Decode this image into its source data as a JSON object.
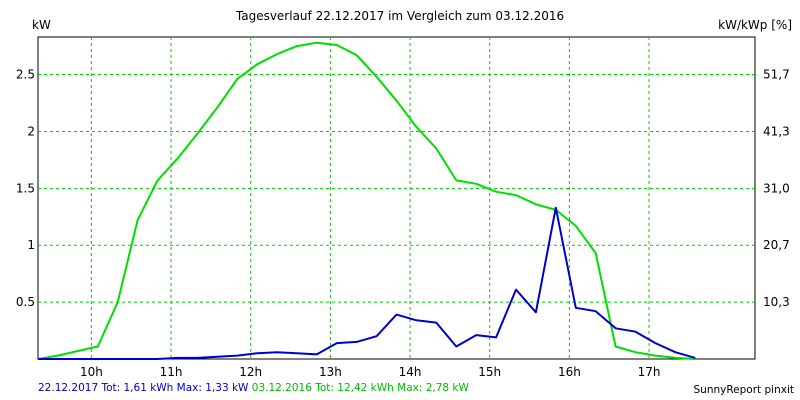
{
  "chart_data": {
    "type": "line",
    "title": "Tagesverlauf 22.12.2017 im Vergleich zum 03.12.2016",
    "ylabel_left": "kW",
    "ylabel_right": "kW/kWp [%]",
    "ylim": [
      0,
      2.83
    ],
    "y_ticks_left": [
      0.5,
      1,
      1.5,
      2,
      2.5
    ],
    "y_ticks_right": [
      "10,3",
      "20,7",
      "31,0",
      "41,3",
      "51,7"
    ],
    "x_ticks": [
      "10h",
      "11h",
      "12h",
      "13h",
      "14h",
      "15h",
      "16h",
      "17h"
    ],
    "x_tick_hours": [
      10,
      11,
      12,
      13,
      14,
      15,
      16,
      17
    ],
    "xlim": [
      9.33,
      18.33
    ],
    "grid": true,
    "series": [
      {
        "name": "22.12.2017",
        "color": "#0000cc",
        "x": [
          9.33,
          9.58,
          9.83,
          10.08,
          10.33,
          10.58,
          10.83,
          11.08,
          11.33,
          11.58,
          11.83,
          12.08,
          12.33,
          12.58,
          12.83,
          13.08,
          13.33,
          13.58,
          13.83,
          14.08,
          14.33,
          14.58,
          14.83,
          15.08,
          15.33,
          15.58,
          15.83,
          16.08,
          16.33,
          16.58,
          16.83,
          17.08,
          17.33,
          17.58
        ],
        "values": [
          0,
          0,
          0,
          0,
          0,
          0,
          0,
          0.01,
          0.01,
          0.02,
          0.03,
          0.05,
          0.06,
          0.05,
          0.04,
          0.14,
          0.15,
          0.2,
          0.39,
          0.34,
          0.32,
          0.11,
          0.21,
          0.19,
          0.61,
          0.41,
          1.33,
          0.45,
          0.42,
          0.27,
          0.24,
          0.14,
          0.06,
          0.01
        ]
      },
      {
        "name": "03.12.2016",
        "color": "#00dd00",
        "x": [
          9.33,
          9.58,
          9.83,
          10.08,
          10.33,
          10.58,
          10.83,
          11.08,
          11.33,
          11.58,
          11.83,
          12.08,
          12.33,
          12.58,
          12.83,
          13.08,
          13.33,
          13.58,
          13.83,
          14.08,
          14.33,
          14.58,
          14.83,
          15.08,
          15.33,
          15.58,
          15.83,
          16.08,
          16.33,
          16.58,
          16.83,
          17.08,
          17.33,
          17.58
        ],
        "values": [
          0,
          0.03,
          0.07,
          0.11,
          0.5,
          1.22,
          1.57,
          1.76,
          1.98,
          2.21,
          2.46,
          2.59,
          2.68,
          2.75,
          2.78,
          2.76,
          2.67,
          2.48,
          2.27,
          2.04,
          1.85,
          1.57,
          1.54,
          1.47,
          1.44,
          1.36,
          1.31,
          1.17,
          0.93,
          0.11,
          0.06,
          0.03,
          0.01,
          0
        ]
      }
    ]
  },
  "footer": {
    "series1_text": "22.12.2017 Tot: 1,61 kWh Max: 1,33 kW",
    "series2_text": "03.12.2016 Tot: 12,42 kWh Max: 2,78 kW",
    "credit": "SunnyReport pinxit"
  }
}
